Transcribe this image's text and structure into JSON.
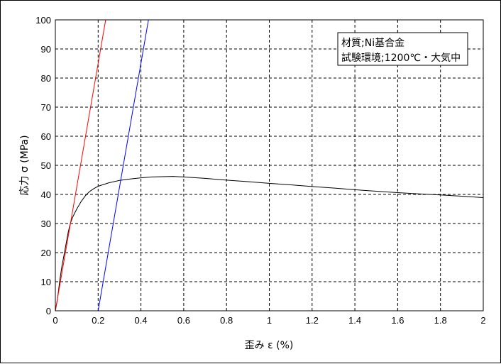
{
  "chart_data": {
    "type": "line",
    "xlabel": "歪み ε (%)",
    "ylabel": "応力 σ (MPa)",
    "xlim": [
      0,
      2
    ],
    "ylim": [
      0,
      100
    ],
    "x_ticks": [
      0,
      0.2,
      0.4,
      0.6,
      0.8,
      1,
      1.2,
      1.4,
      1.6,
      1.8,
      2
    ],
    "x_tick_labels": [
      "0",
      "0.2",
      "0.4",
      "0.6",
      "0.8",
      "1",
      "1.2",
      "1.4",
      "1.6",
      "1.8",
      "2"
    ],
    "y_ticks": [
      0,
      10,
      20,
      30,
      40,
      50,
      60,
      70,
      80,
      90,
      100
    ],
    "y_tick_labels": [
      "0",
      "10",
      "20",
      "30",
      "40",
      "50",
      "60",
      "70",
      "80",
      "90",
      "100"
    ],
    "grid": true,
    "legend_position": "top-right",
    "annotation_lines": [
      "材質;Ni基合金",
      "試験環境;1200℃・大気中"
    ],
    "series": [
      {
        "color": "#000000",
        "x": [
          0,
          0.005,
          0.01,
          0.02,
          0.03,
          0.04,
          0.05,
          0.06,
          0.07,
          0.08,
          0.09,
          0.1,
          0.12,
          0.14,
          0.16,
          0.18,
          0.2,
          0.25,
          0.3,
          0.35,
          0.4,
          0.45,
          0.5,
          0.55,
          0.6,
          0.7,
          0.8,
          0.9,
          1.0,
          1.1,
          1.2,
          1.3,
          1.4,
          1.5,
          1.6,
          1.7,
          1.8,
          1.9,
          2.0
        ],
        "y": [
          0,
          2,
          4,
          10,
          15,
          19,
          23,
          27,
          30,
          32,
          33.5,
          35,
          37.5,
          39.5,
          41,
          42,
          42.8,
          44,
          44.8,
          45.3,
          45.7,
          46,
          46.1,
          46.2,
          46,
          45.5,
          44.9,
          44.4,
          43.8,
          43.3,
          42.7,
          42.2,
          41.6,
          41.1,
          40.6,
          40.2,
          39.8,
          39.4,
          38.9
        ]
      },
      {
        "color": "#ff0000",
        "x": [
          0,
          0.235
        ],
        "y": [
          0,
          100
        ]
      },
      {
        "color": "#0000ff",
        "x": [
          0.2,
          0.435
        ],
        "y": [
          0,
          100
        ]
      }
    ]
  }
}
